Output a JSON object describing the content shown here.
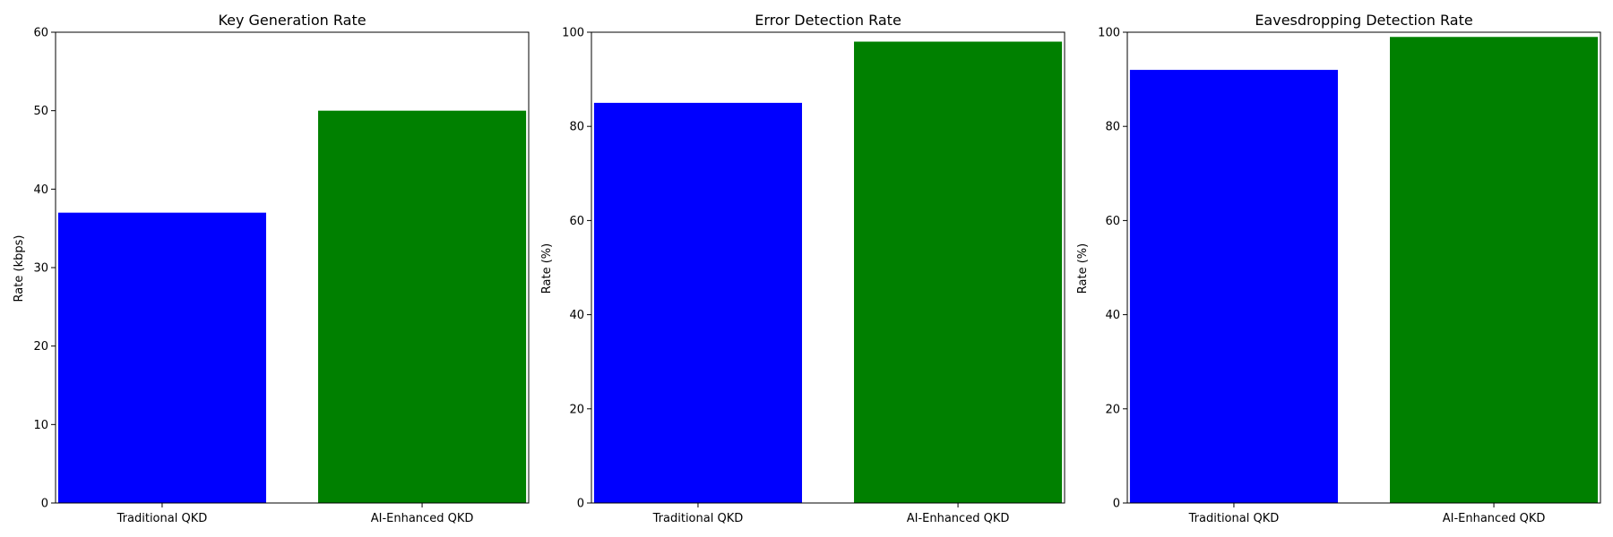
{
  "chart_data": [
    {
      "type": "bar",
      "title": "Key Generation Rate",
      "categories": [
        "Traditional QKD",
        "AI-Enhanced QKD"
      ],
      "values": [
        37,
        50
      ],
      "colors": [
        "#0000ff",
        "#008000"
      ],
      "xlabel": "",
      "ylabel": "Rate (kbps)",
      "ylim": [
        0,
        60
      ],
      "yticks": [
        0,
        10,
        20,
        30,
        40,
        50,
        60
      ],
      "grid": false
    },
    {
      "type": "bar",
      "title": "Error Detection Rate",
      "categories": [
        "Traditional QKD",
        "AI-Enhanced QKD"
      ],
      "values": [
        85,
        98
      ],
      "colors": [
        "#0000ff",
        "#008000"
      ],
      "xlabel": "",
      "ylabel": "Rate (%)",
      "ylim": [
        0,
        100
      ],
      "yticks": [
        0,
        20,
        40,
        60,
        80,
        100
      ],
      "grid": false
    },
    {
      "type": "bar",
      "title": "Eavesdropping Detection Rate",
      "categories": [
        "Traditional QKD",
        "AI-Enhanced QKD"
      ],
      "values": [
        92,
        99
      ],
      "colors": [
        "#0000ff",
        "#008000"
      ],
      "xlabel": "",
      "ylabel": "Rate (%)",
      "ylim": [
        0,
        100
      ],
      "yticks": [
        0,
        20,
        40,
        60,
        80,
        100
      ],
      "grid": false
    }
  ]
}
